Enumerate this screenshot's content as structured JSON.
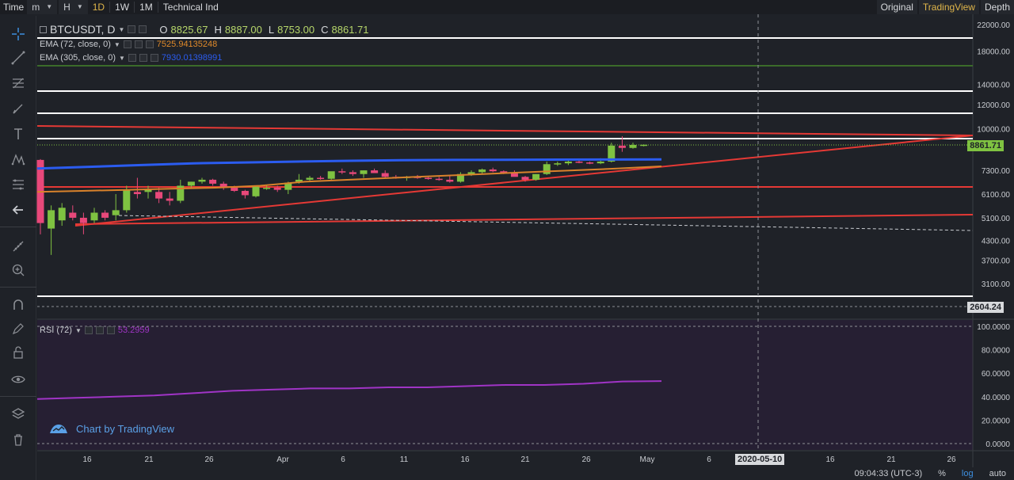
{
  "toolbar": {
    "time_label": "Time",
    "minute_label": "m",
    "hour_label": "H",
    "intervals": [
      "1D",
      "1W",
      "1M"
    ],
    "active_interval": "1D",
    "technical_label": "Technical Ind",
    "right_tabs": [
      "Original",
      "TradingView",
      "Depth"
    ],
    "active_right_tab": "TradingView"
  },
  "legend": {
    "symbol": "BTCUSDT, D",
    "ohlc": [
      {
        "label": "O",
        "value": "8825.67"
      },
      {
        "label": "H",
        "value": "8887.00"
      },
      {
        "label": "L",
        "value": "8753.00"
      },
      {
        "label": "C",
        "value": "8861.71"
      }
    ],
    "ema1": {
      "label": "EMA (72, close, 0)",
      "value": "7525.94135248",
      "color": "#e08a2a"
    },
    "ema2": {
      "label": "EMA (305, close, 0)",
      "value": "7930.01398991",
      "color": "#2b5cf0"
    },
    "rsi": {
      "label": "RSI (72)",
      "value": "53.2959",
      "color": "#a034c6"
    }
  },
  "price_axis": [
    "22000.00",
    "18000.00",
    "14000.00",
    "12000.00",
    "10000.00",
    "7300.00",
    "6100.00",
    "5100.00",
    "4300.00",
    "3700.00",
    "3100.00"
  ],
  "current_price": "8861.71",
  "crosshair_price": "2604.24",
  "rsi_axis": [
    "100.0000",
    "80.0000",
    "60.0000",
    "40.0000",
    "20.0000",
    "0.0000"
  ],
  "time_axis": [
    "16",
    "21",
    "26",
    "Apr",
    "6",
    "11",
    "16",
    "21",
    "26",
    "May",
    "6",
    "16",
    "21",
    "26"
  ],
  "crosshair_date": "2020-05-10",
  "watermark": "Chart by TradingView",
  "status": {
    "time": "09:04:33 (UTC-3)",
    "percent": "%",
    "log": "log",
    "auto": "auto"
  },
  "colors": {
    "up": "#7fc241",
    "down": "#e8487a",
    "bg": "#1f2228",
    "accent": "#e0b64a"
  },
  "chart_data": {
    "type": "candlestick",
    "symbol": "BTCUSDT",
    "interval": "D",
    "price_scale": "log",
    "ylim": [
      2600,
      22000
    ],
    "candles": [
      {
        "o": 7900,
        "h": 7950,
        "l": 4500,
        "c": 4900
      },
      {
        "o": 4700,
        "h": 5600,
        "l": 3850,
        "c": 5400
      },
      {
        "o": 5000,
        "h": 5700,
        "l": 4800,
        "c": 5500
      },
      {
        "o": 5300,
        "h": 5600,
        "l": 5000,
        "c": 5100
      },
      {
        "o": 5100,
        "h": 5300,
        "l": 4500,
        "c": 4900
      },
      {
        "o": 5000,
        "h": 5500,
        "l": 4900,
        "c": 5300
      },
      {
        "o": 5300,
        "h": 5400,
        "l": 5000,
        "c": 5100
      },
      {
        "o": 5200,
        "h": 6100,
        "l": 5000,
        "c": 5400
      },
      {
        "o": 5400,
        "h": 6500,
        "l": 5300,
        "c": 6300
      },
      {
        "o": 6200,
        "h": 6900,
        "l": 5900,
        "c": 6100
      },
      {
        "o": 6200,
        "h": 6500,
        "l": 5900,
        "c": 6300
      },
      {
        "o": 6200,
        "h": 6400,
        "l": 5700,
        "c": 5900
      },
      {
        "o": 5900,
        "h": 6200,
        "l": 5600,
        "c": 5800
      },
      {
        "o": 5800,
        "h": 6800,
        "l": 5700,
        "c": 6500
      },
      {
        "o": 6500,
        "h": 6700,
        "l": 6400,
        "c": 6700
      },
      {
        "o": 6700,
        "h": 6900,
        "l": 6600,
        "c": 6800
      },
      {
        "o": 6800,
        "h": 6850,
        "l": 6500,
        "c": 6600
      },
      {
        "o": 6600,
        "h": 6700,
        "l": 6300,
        "c": 6400
      },
      {
        "o": 6400,
        "h": 6500,
        "l": 6200,
        "c": 6250
      },
      {
        "o": 6250,
        "h": 6300,
        "l": 5900,
        "c": 6050
      },
      {
        "o": 6000,
        "h": 6500,
        "l": 5950,
        "c": 6450
      },
      {
        "o": 6400,
        "h": 6500,
        "l": 6300,
        "c": 6400
      },
      {
        "o": 6400,
        "h": 6500,
        "l": 6200,
        "c": 6300
      },
      {
        "o": 6300,
        "h": 6700,
        "l": 6100,
        "c": 6650
      },
      {
        "o": 6700,
        "h": 7100,
        "l": 6600,
        "c": 6800
      },
      {
        "o": 6800,
        "h": 7000,
        "l": 6700,
        "c": 6900
      },
      {
        "o": 6900,
        "h": 7000,
        "l": 6800,
        "c": 6850
      },
      {
        "o": 6850,
        "h": 7200,
        "l": 6800,
        "c": 7250
      },
      {
        "o": 7250,
        "h": 7400,
        "l": 7100,
        "c": 7200
      },
      {
        "o": 7200,
        "h": 7300,
        "l": 7000,
        "c": 7100
      },
      {
        "o": 7100,
        "h": 7300,
        "l": 6900,
        "c": 7300
      },
      {
        "o": 7300,
        "h": 7400,
        "l": 7200,
        "c": 7150
      },
      {
        "o": 7150,
        "h": 7300,
        "l": 6900,
        "c": 6950
      },
      {
        "o": 6950,
        "h": 7050,
        "l": 6850,
        "c": 6900
      },
      {
        "o": 6900,
        "h": 7000,
        "l": 6750,
        "c": 6950
      },
      {
        "o": 6950,
        "h": 7050,
        "l": 6850,
        "c": 6900
      },
      {
        "o": 6900,
        "h": 7000,
        "l": 6800,
        "c": 6850
      },
      {
        "o": 6850,
        "h": 6950,
        "l": 6750,
        "c": 6800
      },
      {
        "o": 6800,
        "h": 7000,
        "l": 6650,
        "c": 6700
      },
      {
        "o": 6700,
        "h": 7200,
        "l": 6650,
        "c": 7100
      },
      {
        "o": 7100,
        "h": 7300,
        "l": 7000,
        "c": 7200
      },
      {
        "o": 7200,
        "h": 7400,
        "l": 7100,
        "c": 7350
      },
      {
        "o": 7350,
        "h": 7450,
        "l": 7200,
        "c": 7250
      },
      {
        "o": 7250,
        "h": 7300,
        "l": 7100,
        "c": 7150
      },
      {
        "o": 7150,
        "h": 7300,
        "l": 7000,
        "c": 6950
      },
      {
        "o": 6950,
        "h": 7000,
        "l": 6700,
        "c": 6800
      },
      {
        "o": 6800,
        "h": 7100,
        "l": 6750,
        "c": 7100
      },
      {
        "o": 7100,
        "h": 7800,
        "l": 7050,
        "c": 7650
      },
      {
        "o": 7650,
        "h": 7800,
        "l": 7550,
        "c": 7700
      },
      {
        "o": 7700,
        "h": 7900,
        "l": 7600,
        "c": 7800
      },
      {
        "o": 7800,
        "h": 7900,
        "l": 7700,
        "c": 7750
      },
      {
        "o": 7750,
        "h": 7800,
        "l": 7650,
        "c": 7700
      },
      {
        "o": 7700,
        "h": 8000,
        "l": 7650,
        "c": 7800
      },
      {
        "o": 7800,
        "h": 9000,
        "l": 7750,
        "c": 8800
      },
      {
        "o": 8800,
        "h": 9450,
        "l": 8400,
        "c": 8650
      },
      {
        "o": 8650,
        "h": 9000,
        "l": 8600,
        "c": 8850
      },
      {
        "o": 8825.67,
        "h": 8887,
        "l": 8753,
        "c": 8861.71
      }
    ],
    "ema72": [
      6200,
      6250,
      6300,
      6350,
      6400,
      6500,
      6700,
      6800,
      6900,
      7000,
      7100,
      7200,
      7300,
      7400,
      7525.94
    ],
    "ema305": [
      7400,
      7500,
      7600,
      7700,
      7750,
      7800,
      7850,
      7880,
      7900,
      7910,
      7920,
      7925,
      7930.01
    ],
    "rsi": [
      38,
      39,
      40,
      41,
      43,
      45,
      46,
      47,
      47,
      48,
      48,
      49,
      50,
      50,
      51,
      53,
      53.3
    ],
    "rsi_ylim": [
      0,
      100
    ]
  }
}
